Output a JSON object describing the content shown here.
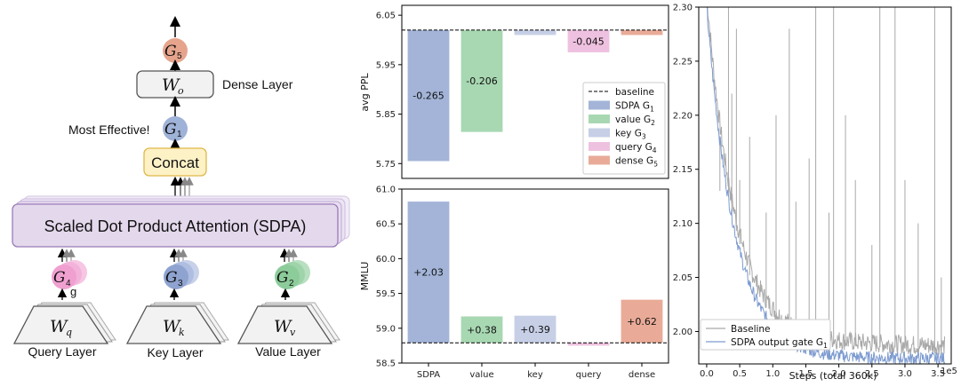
{
  "diagram": {
    "g5_label": "G",
    "g5_sub": "5",
    "wo_label": "W",
    "wo_sub": "o",
    "dense_layer_text": "Dense Layer",
    "most_effective_text": "Most Effective!",
    "g1_label": "G",
    "g1_sub": "1",
    "concat_text": "Concat",
    "sdpa_text": "Scaled Dot Product Attention (SDPA)",
    "g4_label": "G",
    "g4_sub": "4",
    "g4_extra": "g",
    "g3_label": "G",
    "g3_sub": "3",
    "g2_label": "G",
    "g2_sub": "2",
    "wq_label": "W",
    "wq_sub": "q",
    "wk_label": "W",
    "wk_sub": "k",
    "wv_label": "W",
    "wv_sub": "v",
    "query_layer": "Query Layer",
    "key_layer": "Key Layer",
    "value_layer": "Value Layer",
    "colors": {
      "g5": "#e6a48c",
      "g1": "#9fb2d8",
      "g4": "#f0a0d0",
      "g3": "#8fa3d0",
      "g2": "#8ccc9a",
      "concat": "#fdf1c6",
      "sdpa": "#e4d8ec"
    }
  },
  "chart_data": [
    {
      "type": "bar",
      "ylabel": "avg PPL",
      "ylim": [
        5.72,
        6.07
      ],
      "yticks": [
        "6.05",
        "5.95",
        "5.85",
        "5.75"
      ],
      "baseline": 6.02,
      "categories": [
        "SDPA",
        "value",
        "key",
        "query",
        "dense"
      ],
      "values": [
        -0.265,
        -0.206,
        -0.01,
        -0.045,
        -0.01
      ],
      "data_labels": [
        "-0.265",
        "-0.206",
        "",
        "-0.045",
        ""
      ],
      "colors": [
        "#a3b4d8",
        "#a8d8b2",
        "#c6cfe6",
        "#efc1e0",
        "#e9ab98"
      ],
      "legend": [
        {
          "label": "baseline",
          "sub": ""
        },
        {
          "label": "SDPA G",
          "sub": "1"
        },
        {
          "label": "value G",
          "sub": "2"
        },
        {
          "label": "key G",
          "sub": "3"
        },
        {
          "label": "query G",
          "sub": "4"
        },
        {
          "label": "dense G",
          "sub": "5"
        }
      ],
      "legend_position": "lower-right"
    },
    {
      "type": "bar",
      "ylabel": "MMLU",
      "ylim": [
        58.5,
        61.0
      ],
      "yticks": [
        "61.0",
        "60.5",
        "60.0",
        "59.5",
        "59.0",
        "58.5"
      ],
      "baseline": 58.79,
      "categories": [
        "SDPA",
        "value",
        "key",
        "query",
        "dense"
      ],
      "values": [
        2.03,
        0.38,
        0.39,
        -0.04,
        0.62
      ],
      "data_labels": [
        "+2.03",
        "+0.38",
        "+0.39",
        "",
        "+0.62"
      ],
      "colors": [
        "#a3b4d8",
        "#a8d8b2",
        "#c6cfe6",
        "#efc1e0",
        "#e9ab98"
      ]
    },
    {
      "type": "line",
      "xlabel": "Steps (total 360k)",
      "xlim": [
        -0.12,
        3.7
      ],
      "ylim": [
        1.97,
        2.3
      ],
      "xticks": [
        "0.0",
        "0.5",
        "1.0",
        "1.5",
        "2.0",
        "2.5",
        "3.0",
        "3.5"
      ],
      "yticks": [
        "2.30",
        "2.25",
        "2.20",
        "2.15",
        "2.10",
        "2.05",
        "2.00"
      ],
      "x_multiplier": "1e5",
      "series": [
        {
          "name": "Baseline",
          "sub": "",
          "color": "#a9a9a9",
          "start": 2.3,
          "end": 1.985,
          "spikes": [
            [
              0.2,
              2.13
            ],
            [
              0.33,
              2.3
            ],
            [
              0.38,
              2.22
            ],
            [
              0.45,
              2.28
            ],
            [
              0.5,
              2.14
            ],
            [
              0.65,
              2.18
            ],
            [
              0.9,
              2.11
            ],
            [
              1.05,
              2.2
            ],
            [
              1.25,
              2.28
            ],
            [
              1.35,
              2.12
            ],
            [
              1.55,
              2.16
            ],
            [
              1.65,
              2.3
            ],
            [
              1.85,
              2.11
            ],
            [
              1.92,
              2.3
            ],
            [
              2.1,
              2.2
            ],
            [
              2.25,
              2.14
            ],
            [
              2.5,
              2.08
            ],
            [
              2.62,
              2.3
            ],
            [
              2.85,
              2.3
            ],
            [
              3.0,
              2.14
            ],
            [
              3.2,
              2.1
            ],
            [
              3.45,
              2.3
            ],
            [
              3.55,
              2.05
            ]
          ]
        },
        {
          "name": "SDPA output gate G",
          "sub": "1",
          "color": "#7d9bd0",
          "start": 2.3,
          "end": 1.975,
          "spikes": []
        }
      ]
    }
  ]
}
